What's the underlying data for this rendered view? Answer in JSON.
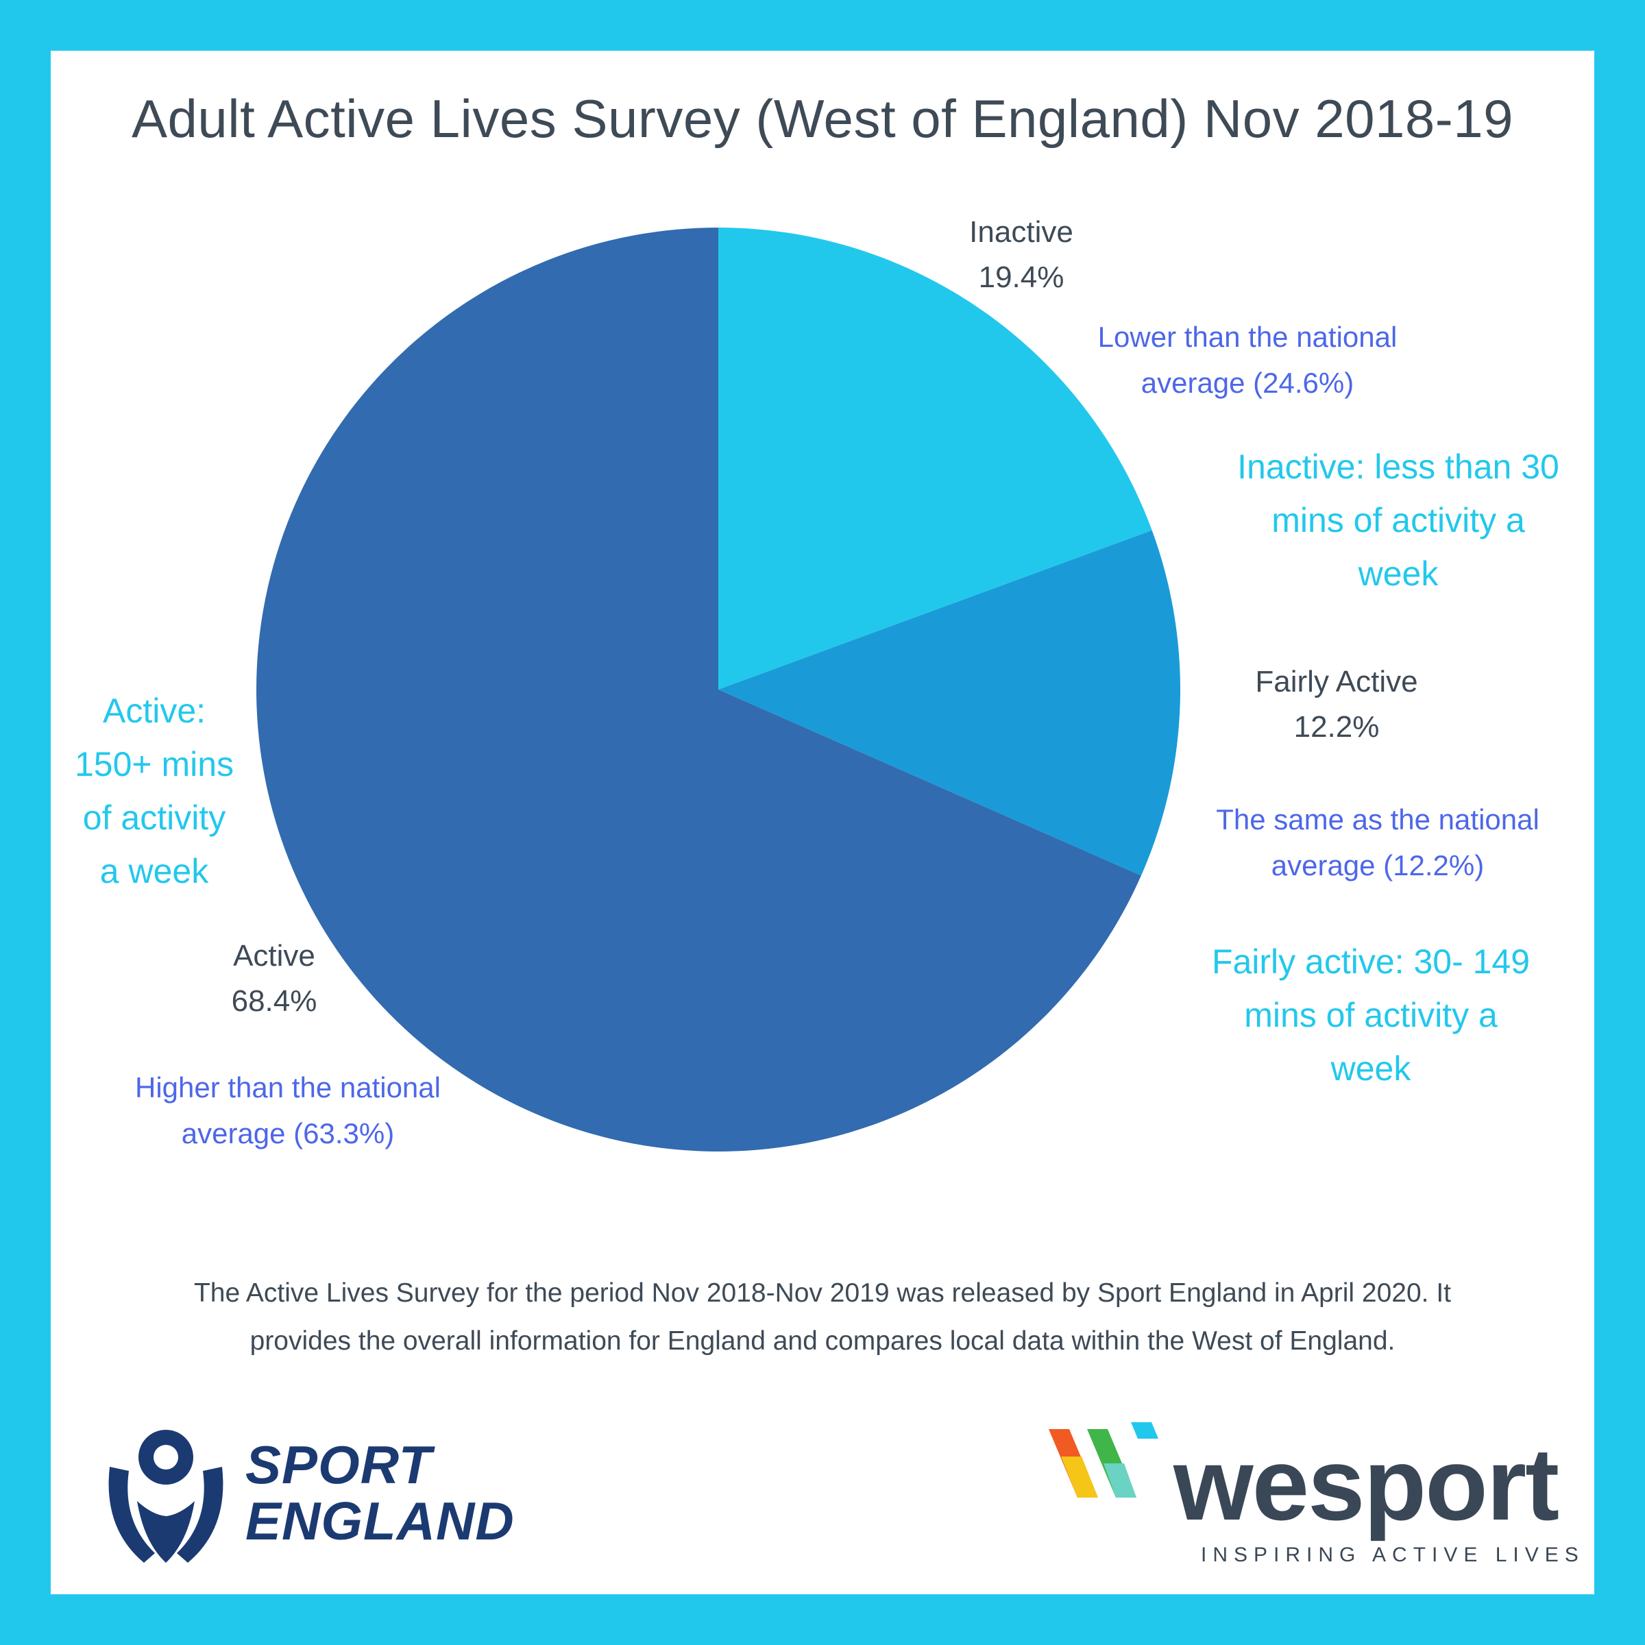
{
  "title": "Adult Active Lives Survey (West of England) Nov 2018-19",
  "colors": {
    "frame": "#22c8ec",
    "inactive": "#22c8ec",
    "fairly_active": "#1a9bd7",
    "active": "#326baf",
    "compare_text": "#4d67e8",
    "definition_text": "#22c8ec"
  },
  "chart_data": {
    "type": "pie",
    "title": "Adult Active Lives Survey (West of England) Nov 2018-19",
    "slices": [
      {
        "name": "Inactive",
        "value": 19.4,
        "label": "19.4%",
        "color": "#22c8ec"
      },
      {
        "name": "Fairly Active",
        "value": 12.2,
        "label": "12.2%",
        "color": "#1a9bd7"
      },
      {
        "name": "Active",
        "value": 68.4,
        "label": "68.4%",
        "color": "#326baf"
      }
    ]
  },
  "comparisons": {
    "inactive": [
      "Lower than the national",
      "average (24.6%)"
    ],
    "fairly_active": [
      "The same as the national",
      "average (12.2%)"
    ],
    "active": [
      "Higher than the national",
      "average (63.3%)"
    ]
  },
  "definitions": {
    "inactive": [
      "Inactive: less than 30",
      "mins of activity a",
      "week"
    ],
    "fairly_active": [
      "Fairly active: 30- 149",
      "mins of activity a",
      "week"
    ],
    "active": [
      "Active:",
      "150+ mins",
      "of activity",
      "a week"
    ]
  },
  "footnote": [
    "The Active Lives Survey for the period Nov 2018-Nov 2019 was released by Sport England in April 2020. It",
    "provides the overall information for England and compares local data within the West of England."
  ],
  "logos": {
    "sport_england": [
      "SPORT",
      "ENGLAND"
    ],
    "wesport_word": "wesport",
    "wesport_tagline": "INSPIRING ACTIVE LIVES"
  }
}
